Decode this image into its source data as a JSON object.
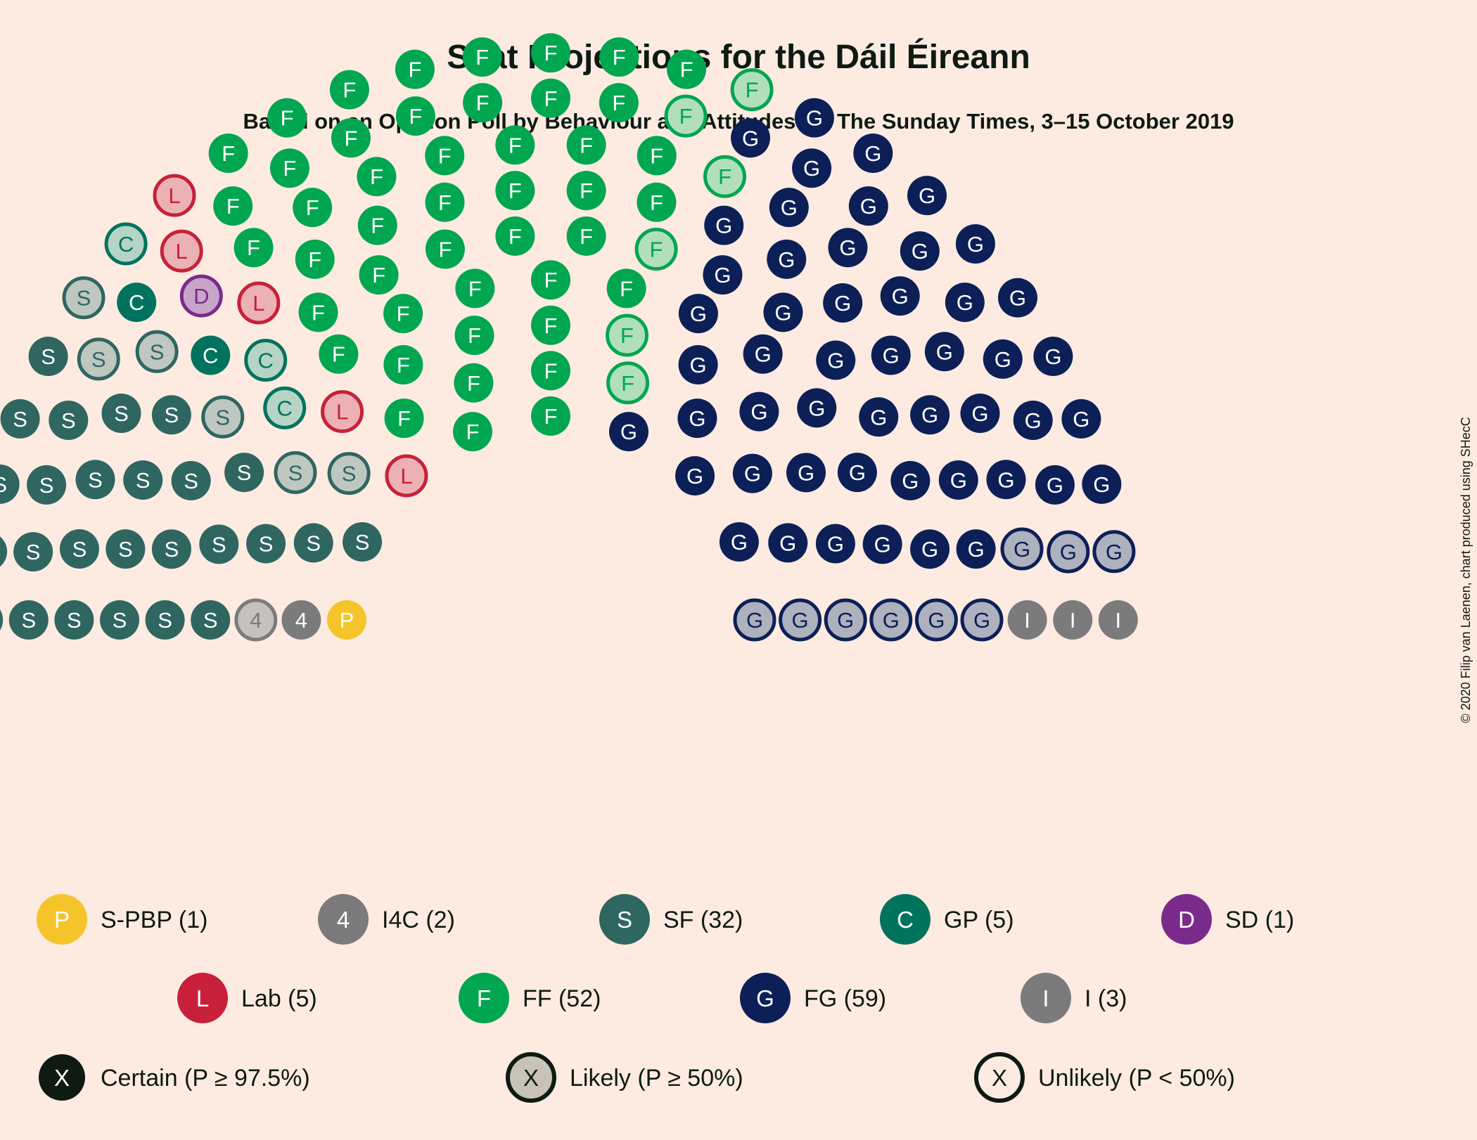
{
  "title": "Seat Projections for the Dáil Éireann",
  "subtitle": "Based on an Opinion Poll by Behaviour and Attitudes for The Sunday Times, 3–15 October 2019",
  "credit": "© 2020 Filip van Laenen, chart produced using SHecC",
  "chart_data": {
    "type": "parliament",
    "total_seats": 160,
    "parties": [
      {
        "abbr": "S-PBP",
        "letter": "P",
        "color": "#f4c42a",
        "likely_color": "#f4c42a",
        "certain": 1,
        "likely": 0,
        "unlikely": 0
      },
      {
        "abbr": "I4C",
        "letter": "4",
        "color": "#7b7b7b",
        "likely_color": "#c4c1bf",
        "certain": 1,
        "likely": 1,
        "unlikely": 0
      },
      {
        "abbr": "SF",
        "letter": "S",
        "color": "#2f6660",
        "likely_color": "#bfc7c1",
        "certain": 26,
        "likely": 6,
        "unlikely": 0
      },
      {
        "abbr": "GP",
        "letter": "C",
        "color": "#00735e",
        "likely_color": "#b6d4c6",
        "certain": 2,
        "likely": 3,
        "unlikely": 0
      },
      {
        "abbr": "SD",
        "letter": "D",
        "color": "#7a2b8b",
        "likely_color": "#c8a5c8",
        "certain": 0,
        "likely": 1,
        "unlikely": 0
      },
      {
        "abbr": "Lab",
        "letter": "L",
        "color": "#c8203a",
        "likely_color": "#ebb1b4",
        "certain": 0,
        "likely": 5,
        "unlikely": 0
      },
      {
        "abbr": "FF",
        "letter": "F",
        "color": "#00a650",
        "likely_color": "#b0dfba",
        "certain": 46,
        "likely": 6,
        "unlikely": 0
      },
      {
        "abbr": "FG",
        "letter": "G",
        "color": "#0c1f57",
        "likely_color": "#aeb1be",
        "certain": 50,
        "likely": 9,
        "unlikely": 0
      },
      {
        "abbr": "I",
        "letter": "I",
        "color": "#7b7b7b",
        "likely_color": "#c4c1bf",
        "certain": 3,
        "likely": 0,
        "unlikely": 0
      }
    ],
    "legend_entries": [
      {
        "label": "S-PBP (1)",
        "letter": "P",
        "color": "#f4c42a"
      },
      {
        "label": "I4C (2)",
        "letter": "4",
        "color": "#7b7b7b"
      },
      {
        "label": "SF (32)",
        "letter": "S",
        "color": "#2f6660"
      },
      {
        "label": "GP (5)",
        "letter": "C",
        "color": "#00735e"
      },
      {
        "label": "SD (1)",
        "letter": "D",
        "color": "#7a2b8b"
      },
      {
        "label": "Lab (5)",
        "letter": "L",
        "color": "#c8203a"
      },
      {
        "label": "FF (52)",
        "letter": "F",
        "color": "#00a650"
      },
      {
        "label": "FG (59)",
        "letter": "G",
        "color": "#0c1f57"
      },
      {
        "label": "I (3)",
        "letter": "I",
        "color": "#7b7b7b"
      }
    ],
    "status_legend": [
      {
        "label": "Certain (P ≥ 97.5%)",
        "letter": "X",
        "kind": "certain"
      },
      {
        "label": "Likely (P ≥ 50%)",
        "letter": "X",
        "kind": "likely"
      },
      {
        "label": "Unlikely (P < 50%)",
        "letter": "X",
        "kind": "unlikely"
      }
    ]
  },
  "colors": {
    "background": "#fdebe1",
    "text": "#0e1a12",
    "status_certain": "#0e1a12",
    "status_likely": "#c8c3b8"
  }
}
